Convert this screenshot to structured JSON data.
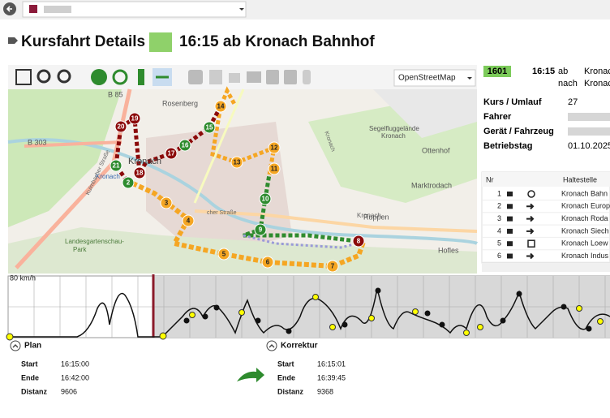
{
  "header": {
    "title": "Kursfahrt Details",
    "trip": "16:15 ab Kronach Bahnhof"
  },
  "map": {
    "layer": "OpenStreetMap",
    "labels": [
      "B 85",
      "B 303",
      "Rosenberg",
      "Kronach",
      "Segelfluggelände",
      "Kronach",
      "Ottenhof",
      "Marktrodach",
      "Hofles",
      "Landesgartenschau-",
      "Park",
      "Kronach",
      "Kulmbacher Straße",
      "cher Straße",
      "Kronach",
      "Kronach",
      "Ruppen"
    ]
  },
  "stops": [
    {
      "label": "2",
      "color": "#2e8b2e"
    },
    {
      "label": "3",
      "color": "#f5a623"
    },
    {
      "label": "4",
      "color": "#f5a623"
    },
    {
      "label": "5",
      "color": "#f5a623"
    },
    {
      "label": "6",
      "color": "#f5a623"
    },
    {
      "label": "7",
      "color": "#f5a623"
    },
    {
      "label": "8",
      "color": "#8b0a0a"
    },
    {
      "label": "9",
      "color": "#2e8b2e"
    },
    {
      "label": "10",
      "color": "#2e8b2e"
    },
    {
      "label": "11",
      "color": "#f5a623"
    },
    {
      "label": "12",
      "color": "#f5a623"
    },
    {
      "label": "13",
      "color": "#f5a623"
    },
    {
      "label": "14",
      "color": "#f5a623"
    },
    {
      "label": "15",
      "color": "#2e8b2e"
    },
    {
      "label": "16",
      "color": "#2e8b2e"
    },
    {
      "label": "17",
      "color": "#8b0a0a"
    },
    {
      "label": "18",
      "color": "#8b0a0a"
    },
    {
      "label": "19",
      "color": "#8b0a0a"
    },
    {
      "label": "20",
      "color": "#8b0a0a"
    },
    {
      "label": "21",
      "color": "#2e8b2e"
    }
  ],
  "summary": {
    "line": "1601",
    "time": "16:15",
    "dep": "ab",
    "arr": "nach",
    "from": "Kronac",
    "to": "Kronac"
  },
  "details": [
    {
      "label": "Kurs / Umlauf",
      "value": "27"
    },
    {
      "label": "Fahrer"
    },
    {
      "label": "Gerät / Fahrzeug"
    },
    {
      "label": "Betriebstag",
      "value": "01.10.2025"
    }
  ],
  "table": {
    "columns": [
      "Nr",
      "Haltestelle"
    ],
    "rows": [
      [
        "1",
        "Kronach Bahn"
      ],
      [
        "2",
        "Kronach Europ"
      ],
      [
        "3",
        "Kronach Roda"
      ],
      [
        "4",
        "Kronach Siech"
      ],
      [
        "5",
        "Kronach Loew"
      ],
      [
        "6",
        "Kronach Indus"
      ]
    ]
  },
  "speed": {
    "max_label": "80 km/h"
  },
  "plan": {
    "title": "Plan",
    "fields": [
      [
        "Start",
        "16:15:00"
      ],
      [
        "Ende",
        "16:42:00"
      ],
      [
        "Distanz",
        "9606"
      ]
    ]
  },
  "correction": {
    "title": "Korrektur",
    "fields": [
      [
        "Start",
        "16:15:01"
      ],
      [
        "Ende",
        "16:39:45"
      ],
      [
        "Distanz",
        "9368"
      ]
    ]
  }
}
